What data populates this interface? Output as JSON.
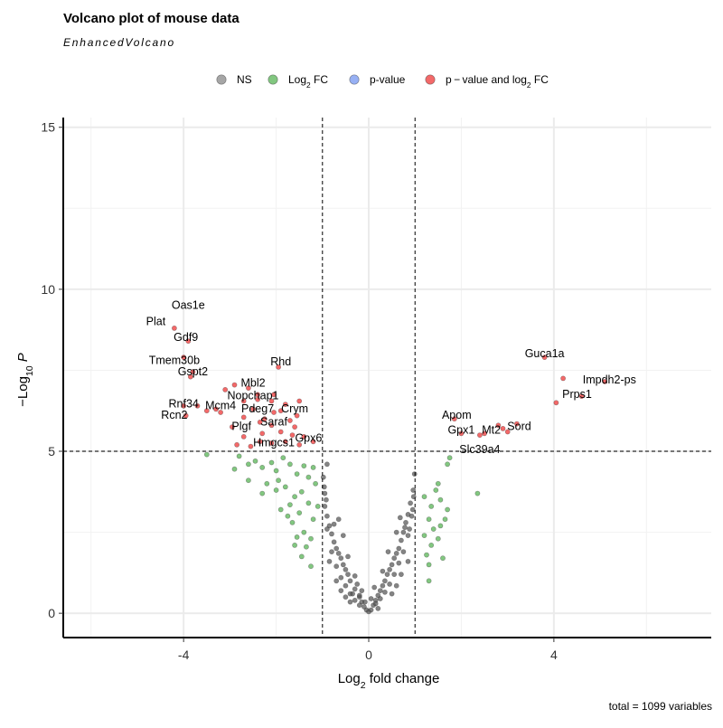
{
  "chart_data": {
    "type": "scatter",
    "title": "Volcano plot of mouse data",
    "subtitle": "EnhancedVolcano",
    "caption": "total = 1099 variables",
    "x_axis": {
      "label": "Log2 fold change",
      "label_main": "Log",
      "label_sub": "2",
      "label_rest": " fold change",
      "range": [
        -6.6,
        7.4
      ],
      "ticks": [
        -4,
        0,
        4
      ],
      "tick_labels": [
        "-4",
        "0",
        "4"
      ]
    },
    "y_axis": {
      "label": "-Log10 P",
      "label_main": "−Log",
      "label_sub": "10",
      "label_italic": "P",
      "range": [
        -0.75,
        15.3
      ],
      "ticks": [
        0,
        5,
        10,
        15
      ],
      "tick_labels": [
        "0",
        "5",
        "10",
        "15"
      ]
    },
    "grid": true,
    "cutoffs": {
      "fc_lines": [
        -1,
        1
      ],
      "p_line": 5
    },
    "legend": {
      "position": "top",
      "items": [
        {
          "key": "NS",
          "label": "NS",
          "color": "#808080"
        },
        {
          "key": "FC",
          "label_main": "Log",
          "label_sub": "2",
          "label_rest": " FC",
          "color": "#4daf4a"
        },
        {
          "key": "P",
          "label": "p-value",
          "color": "#6b8ff0"
        },
        {
          "key": "PFC",
          "label_main": "p − value and log",
          "label_sub": "2",
          "label_rest": " FC",
          "color": "#ee2a2a"
        }
      ]
    },
    "series": [
      {
        "name": "p-value and log2 FC",
        "color": "#ee2a2a",
        "points": [
          [
            -4.2,
            8.8
          ],
          [
            -3.9,
            8.4
          ],
          [
            -4.0,
            7.9
          ],
          [
            -3.8,
            7.45
          ],
          [
            -3.85,
            7.3
          ],
          [
            -2.9,
            7.05
          ],
          [
            -2.6,
            6.95
          ],
          [
            -2.4,
            6.75
          ],
          [
            -2.1,
            6.55
          ],
          [
            -2.4,
            6.6
          ],
          [
            -1.95,
            7.6
          ],
          [
            -4.0,
            6.4
          ],
          [
            -3.95,
            6.1
          ],
          [
            -3.3,
            6.3
          ],
          [
            -3.5,
            6.25
          ],
          [
            -2.5,
            6.3
          ],
          [
            -2.05,
            6.2
          ],
          [
            -1.5,
            6.55
          ],
          [
            -1.55,
            6.1
          ],
          [
            -1.9,
            6.25
          ],
          [
            -3.1,
            6.9
          ],
          [
            -2.7,
            6.05
          ],
          [
            -2.35,
            5.9
          ],
          [
            -2.95,
            5.75
          ],
          [
            -2.7,
            5.45
          ],
          [
            -2.1,
            5.8
          ],
          [
            -1.9,
            5.6
          ],
          [
            -1.6,
            5.75
          ],
          [
            -1.65,
            5.5
          ],
          [
            -2.3,
            5.55
          ],
          [
            -2.55,
            5.15
          ],
          [
            -2.35,
            5.3
          ],
          [
            -2.1,
            5.25
          ],
          [
            -1.8,
            5.3
          ],
          [
            -1.4,
            5.45
          ],
          [
            -1.5,
            5.2
          ],
          [
            -3.2,
            6.2
          ],
          [
            -3.7,
            6.4
          ],
          [
            -2.7,
            6.55
          ],
          [
            -2.05,
            6.75
          ],
          [
            -1.8,
            6.45
          ],
          [
            -2.25,
            6.0
          ],
          [
            -1.2,
            5.3
          ],
          [
            -2.85,
            5.2
          ],
          [
            -1.7,
            5.95
          ],
          [
            3.8,
            7.9
          ],
          [
            4.2,
            7.25
          ],
          [
            5.1,
            7.15
          ],
          [
            4.6,
            6.7
          ],
          [
            4.05,
            6.5
          ],
          [
            2.8,
            5.8
          ],
          [
            3.2,
            5.85
          ],
          [
            2.9,
            5.7
          ],
          [
            2.5,
            5.55
          ],
          [
            2.4,
            5.5
          ],
          [
            1.85,
            6.0
          ],
          [
            2.0,
            5.55
          ],
          [
            3.0,
            5.6
          ]
        ]
      },
      {
        "name": "Log2 FC",
        "color": "#4daf4a",
        "points": [
          [
            -3.5,
            4.9
          ],
          [
            -2.8,
            4.85
          ],
          [
            -2.6,
            4.6
          ],
          [
            -2.45,
            4.7
          ],
          [
            -2.3,
            4.5
          ],
          [
            -2.1,
            4.65
          ],
          [
            -2.0,
            4.4
          ],
          [
            -1.85,
            4.8
          ],
          [
            -1.7,
            4.6
          ],
          [
            -1.55,
            4.3
          ],
          [
            -1.4,
            4.55
          ],
          [
            -1.3,
            4.2
          ],
          [
            -1.2,
            4.5
          ],
          [
            -1.15,
            4.0
          ],
          [
            -2.2,
            4.0
          ],
          [
            -2.0,
            3.8
          ],
          [
            -1.8,
            3.9
          ],
          [
            -1.6,
            3.6
          ],
          [
            -1.45,
            3.75
          ],
          [
            -1.3,
            3.4
          ],
          [
            -1.5,
            3.1
          ],
          [
            -1.2,
            2.9
          ],
          [
            -1.65,
            2.8
          ],
          [
            -1.4,
            2.5
          ],
          [
            -1.55,
            2.35
          ],
          [
            -1.25,
            2.3
          ],
          [
            -1.45,
            1.75
          ],
          [
            -1.6,
            2.1
          ],
          [
            -1.35,
            2.05
          ],
          [
            -2.3,
            3.7
          ],
          [
            -2.6,
            4.1
          ],
          [
            -2.9,
            4.45
          ],
          [
            -1.9,
            3.2
          ],
          [
            -1.7,
            3.35
          ],
          [
            -1.25,
            1.45
          ],
          [
            -1.1,
            3.3
          ],
          [
            -1.75,
            3.0
          ],
          [
            -1.95,
            4.1
          ],
          [
            1.5,
            4.0
          ],
          [
            1.7,
            4.6
          ],
          [
            1.75,
            4.8
          ],
          [
            1.35,
            3.3
          ],
          [
            1.3,
            2.9
          ],
          [
            1.55,
            3.5
          ],
          [
            1.65,
            2.9
          ],
          [
            1.4,
            2.6
          ],
          [
            1.5,
            2.3
          ],
          [
            1.35,
            2.1
          ],
          [
            1.25,
            1.8
          ],
          [
            1.3,
            1.5
          ],
          [
            1.6,
            1.7
          ],
          [
            1.45,
            3.8
          ],
          [
            1.2,
            2.4
          ],
          [
            1.55,
            2.7
          ],
          [
            1.7,
            3.2
          ],
          [
            2.35,
            3.7
          ],
          [
            1.3,
            1.0
          ],
          [
            1.2,
            3.6
          ]
        ]
      },
      {
        "name": "NS",
        "color": "#505050",
        "points": [
          [
            -0.35,
            0.6
          ],
          [
            -0.3,
            0.75
          ],
          [
            -0.25,
            0.9
          ],
          [
            -0.2,
            0.5
          ],
          [
            -0.15,
            0.35
          ],
          [
            -0.1,
            0.2
          ],
          [
            -0.05,
            0.1
          ],
          [
            0.0,
            0.05
          ],
          [
            0.05,
            0.1
          ],
          [
            0.1,
            0.25
          ],
          [
            0.15,
            0.4
          ],
          [
            0.2,
            0.55
          ],
          [
            0.25,
            0.7
          ],
          [
            0.3,
            0.85
          ],
          [
            0.35,
            1.0
          ],
          [
            -0.4,
            1.0
          ],
          [
            -0.45,
            1.2
          ],
          [
            -0.5,
            1.35
          ],
          [
            -0.55,
            1.5
          ],
          [
            -0.6,
            1.7
          ],
          [
            -0.65,
            1.85
          ],
          [
            -0.7,
            2.0
          ],
          [
            -0.75,
            2.2
          ],
          [
            -0.8,
            2.45
          ],
          [
            -0.85,
            2.7
          ],
          [
            -0.9,
            3.0
          ],
          [
            -0.95,
            3.3
          ],
          [
            -0.9,
            2.6
          ],
          [
            -0.8,
            1.9
          ],
          [
            -0.7,
            1.45
          ],
          [
            -0.6,
            1.1
          ],
          [
            -0.5,
            0.85
          ],
          [
            -0.4,
            0.6
          ],
          [
            -0.3,
            0.4
          ],
          [
            -0.2,
            0.25
          ],
          [
            0.4,
            1.2
          ],
          [
            0.45,
            1.35
          ],
          [
            0.5,
            1.5
          ],
          [
            0.55,
            1.7
          ],
          [
            0.6,
            1.85
          ],
          [
            0.65,
            2.0
          ],
          [
            0.7,
            2.25
          ],
          [
            0.75,
            2.5
          ],
          [
            0.8,
            2.8
          ],
          [
            0.85,
            3.05
          ],
          [
            0.9,
            3.4
          ],
          [
            0.95,
            3.2
          ],
          [
            0.85,
            2.4
          ],
          [
            0.75,
            1.9
          ],
          [
            0.65,
            1.55
          ],
          [
            0.55,
            1.2
          ],
          [
            0.45,
            0.9
          ],
          [
            0.35,
            0.65
          ],
          [
            0.25,
            0.45
          ],
          [
            0.15,
            0.3
          ],
          [
            -0.98,
            4.2
          ],
          [
            -0.95,
            3.7
          ],
          [
            -0.92,
            3.5
          ],
          [
            -0.96,
            3.9
          ],
          [
            -0.9,
            4.6
          ],
          [
            0.97,
            3.6
          ],
          [
            0.93,
            3.0
          ],
          [
            0.99,
            4.3
          ],
          [
            0.96,
            3.8
          ],
          [
            0.88,
            2.6
          ],
          [
            -0.6,
            0.7
          ],
          [
            -0.5,
            0.5
          ],
          [
            -0.4,
            0.35
          ],
          [
            0.5,
            0.6
          ],
          [
            0.6,
            0.85
          ],
          [
            0.7,
            1.2
          ],
          [
            -0.7,
            1.0
          ],
          [
            -0.85,
            1.6
          ],
          [
            0.85,
            1.6
          ],
          [
            -0.75,
            2.75
          ],
          [
            0.78,
            2.65
          ],
          [
            -0.3,
            1.15
          ],
          [
            0.3,
            1.3
          ],
          [
            -0.15,
            0.7
          ],
          [
            0.12,
            0.8
          ],
          [
            -0.55,
            2.4
          ],
          [
            0.6,
            2.5
          ],
          [
            -0.65,
            2.9
          ],
          [
            0.68,
            2.95
          ],
          [
            -0.45,
            1.75
          ],
          [
            0.42,
            1.9
          ],
          [
            -0.2,
            0.55
          ],
          [
            0.05,
            0.45
          ],
          [
            -0.08,
            0.35
          ],
          [
            0.2,
            0.15
          ]
        ]
      }
    ],
    "labels": [
      {
        "text": "Oas1e",
        "x": -3.9,
        "y": 9.4
      },
      {
        "text": "Plat",
        "x": -4.6,
        "y": 8.9
      },
      {
        "text": "Gdf9",
        "x": -3.95,
        "y": 8.4
      },
      {
        "text": "Tmem30b",
        "x": -4.2,
        "y": 7.7
      },
      {
        "text": "Gspt2",
        "x": -3.8,
        "y": 7.35
      },
      {
        "text": "Rhd",
        "x": -1.9,
        "y": 7.65
      },
      {
        "text": "Mbl2",
        "x": -2.5,
        "y": 7.0
      },
      {
        "text": "Nopchap1",
        "x": -2.5,
        "y": 6.6
      },
      {
        "text": "Rnf34",
        "x": -4.0,
        "y": 6.35
      },
      {
        "text": "Mcm4",
        "x": -3.2,
        "y": 6.3
      },
      {
        "text": "Rcn2",
        "x": -4.2,
        "y": 6.0
      },
      {
        "text": "Pdeg7",
        "x": -2.4,
        "y": 6.2
      },
      {
        "text": "Crym",
        "x": -1.6,
        "y": 6.2
      },
      {
        "text": "Saraf",
        "x": -2.05,
        "y": 5.8
      },
      {
        "text": "Plgf",
        "x": -2.75,
        "y": 5.65
      },
      {
        "text": "Hmgcs1",
        "x": -2.05,
        "y": 5.15
      },
      {
        "text": "Gpx6",
        "x": -1.3,
        "y": 5.3
      },
      {
        "text": "Guca1a",
        "x": 3.8,
        "y": 7.9
      },
      {
        "text": "Impdh2-ps",
        "x": 5.2,
        "y": 7.1
      },
      {
        "text": "Prps1",
        "x": 4.5,
        "y": 6.65
      },
      {
        "text": "Apom",
        "x": 1.9,
        "y": 6.0
      },
      {
        "text": "Gpx1",
        "x": 2.0,
        "y": 5.55
      },
      {
        "text": "Mt2",
        "x": 2.65,
        "y": 5.55
      },
      {
        "text": "Sord",
        "x": 3.25,
        "y": 5.65
      },
      {
        "text": "Slc39a4",
        "x": 2.4,
        "y": 4.95
      }
    ]
  }
}
